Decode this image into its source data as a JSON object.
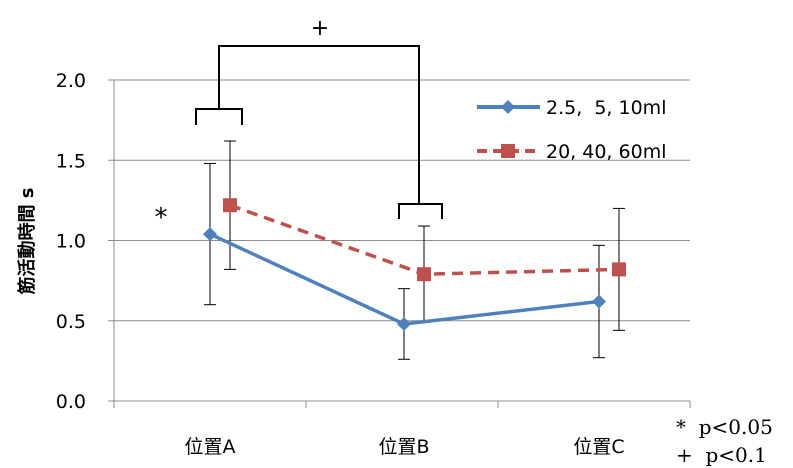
{
  "chart_data": {
    "type": "line",
    "title": "",
    "xlabel": "",
    "ylabel": "筋活動時間 s",
    "categories": [
      "位置A",
      "位置B",
      "位置C"
    ],
    "ylim": [
      0,
      2
    ],
    "y_ticks": [
      "0.0",
      "0.5",
      "1.0",
      "1.5",
      "2.0"
    ],
    "grid": true,
    "legend_position": "top-right",
    "series": [
      {
        "name": "2.5,  5, 10ml",
        "values": [
          1.04,
          0.48,
          0.62
        ],
        "error": [
          0.44,
          0.22,
          0.35
        ],
        "color": "#4F81BD",
        "marker": "diamond",
        "line_style": "solid"
      },
      {
        "name": "20, 40, 60ml",
        "values": [
          1.22,
          0.79,
          0.82
        ],
        "error": [
          0.4,
          0.3,
          0.38
        ],
        "color": "#C0504D",
        "marker": "square",
        "line_style": "dashed"
      }
    ],
    "annotations": {
      "plus_mark": "+",
      "star_mark": "*",
      "legend_note_1": "*  p<0.05",
      "legend_note_2": "+  p<0.1"
    }
  }
}
